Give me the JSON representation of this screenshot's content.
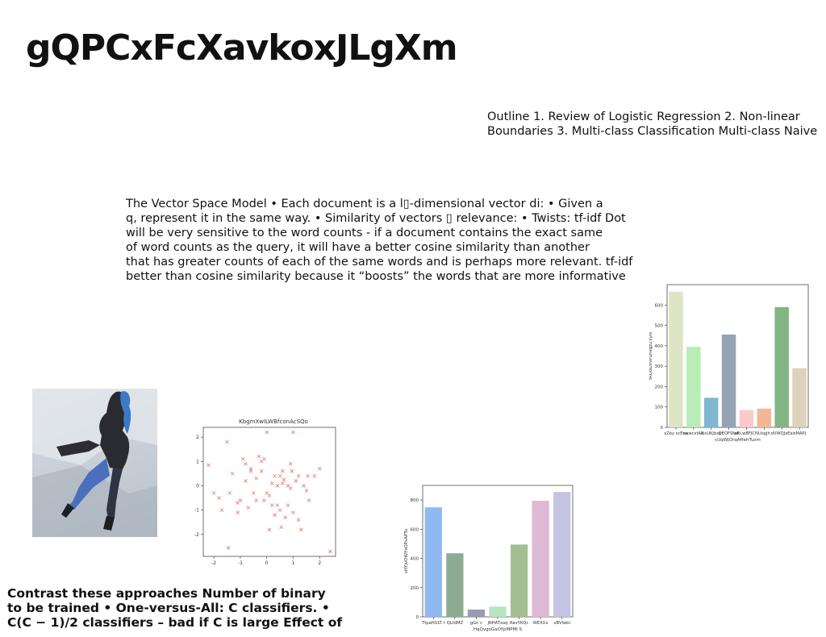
{
  "slide": {
    "title": "gQPCxFcXavkoxJLgXm",
    "outline": "Outline 1. Review of Logistic Regression 2. Non-linear Boundaries 3. Multi-class Classification Multi-class Naive",
    "vsm_lines": [
      "The Vector Space Model • Each document is a l▯-dimensional vector di: • Given a",
      "q, represent it in the same way. • Similarity of vectors ▯ relevance: • Twists:  tf-idf Dot",
      "will be very sensitive to the word counts - if a document contains the exact same",
      "of word counts as the query, it will have a better cosine similarity than another",
      "that has greater counts of each of the same words and is perhaps more relevant. tf-idf",
      "better than cosine similarity because it “boosts” the words that are more informative"
    ],
    "contrast_lines": [
      "Contrast these approaches Number of binary",
      "to be trained • One-versus-All: C classifiers. •",
      "C(C − 1)/2 classifiers – bad if C is large Effect of"
    ]
  },
  "chart_data": [
    {
      "type": "scatter",
      "title": "KbgmXwILWBfconAcSQo",
      "color": "#e07a6a",
      "marker": "x",
      "xlim": [
        -2.4,
        2.6
      ],
      "ylim": [
        -2.9,
        2.4
      ],
      "xticks": [
        "-2",
        "-1",
        "0",
        "1",
        "2"
      ],
      "yticks": [
        "-2",
        "-1",
        "0",
        "1",
        "2"
      ],
      "x": [
        -2.2,
        -1.5,
        -1.1,
        -1.4,
        -0.8,
        -0.6,
        -0.4,
        -0.2,
        0.0,
        0.2,
        0.4,
        0.6,
        0.8,
        1.0,
        1.3,
        1.6,
        -2.0,
        -1.7,
        -1.0,
        -0.7,
        -0.3,
        0.1,
        0.5,
        0.9,
        1.2,
        1.8,
        2.0,
        -1.3,
        -0.9,
        -0.5,
        -0.1,
        0.3,
        0.7,
        1.1,
        1.5,
        -1.8,
        -0.6,
        0.0,
        0.4,
        0.8,
        1.4,
        -0.2,
        0.2,
        0.6,
        1.0,
        -1.1,
        0.5,
        -0.4,
        0.9,
        -1.45,
        0.65,
        1.2,
        2.4,
        -0.1,
        0.95,
        0.3,
        -0.8,
        0.1,
        0.55,
        1.55
      ],
      "y": [
        0.85,
        1.8,
        -1.1,
        -0.3,
        0.2,
        0.6,
        -0.6,
        1.0,
        2.2,
        0.1,
        -0.8,
        0.6,
        0.0,
        2.2,
        -1.8,
        -0.6,
        -0.3,
        -1.0,
        -0.6,
        -0.9,
        1.2,
        -1.8,
        -1.0,
        0.9,
        0.4,
        0.4,
        0.7,
        0.5,
        1.1,
        -0.3,
        -0.6,
        0.4,
        -1.3,
        0.2,
        -0.2,
        -0.5,
        0.7,
        -0.3,
        0.0,
        -0.8,
        0.0,
        0.6,
        -0.8,
        0.1,
        -1.1,
        -0.7,
        0.4,
        0.3,
        -0.1,
        -2.55,
        0.25,
        -1.4,
        -2.7,
        1.1,
        0.6,
        -1.2,
        0.9,
        -0.4,
        -1.7,
        0.4
      ]
    },
    {
      "type": "bar",
      "xlabel": "cUqWJOrqAHehTuzm",
      "ylabel": "fRQdDxvPuhegzZVyN",
      "categories": [
        "xZey scEva",
        "nawcxtAR",
        "icxUKjbxp",
        "DEOFWpF",
        "ekLwBFJCN",
        "Uogjh",
        "dVWQJxEa",
        "bMAPJ"
      ],
      "values": [
        665,
        395,
        145,
        455,
        85,
        92,
        590,
        290
      ],
      "colors": [
        "#dde5c4",
        "#b8edb7",
        "#7fb7d3",
        "#95a3b3",
        "#f9c9cc",
        "#f2b896",
        "#82b584",
        "#ded2bc"
      ],
      "ylim": [
        0,
        700
      ],
      "yticks": [
        0,
        100,
        200,
        300,
        400,
        500,
        600
      ]
    },
    {
      "type": "bar",
      "xlabel": "HqQvgoGaOYpMPMi S",
      "ylabel": "vHYjvOWYsQPxAPTu",
      "categories": [
        "TtpaHULT t",
        "QLtdMZ",
        "gGn c",
        "jNHATxaq",
        "RavYKQc",
        "WEXUx",
        "vBVlwbl"
      ],
      "values": [
        750,
        435,
        50,
        70,
        495,
        795,
        855
      ],
      "colors": [
        "#8fb9f0",
        "#8dab90",
        "#9a9ab3",
        "#b7e5c0",
        "#a2bf92",
        "#dfb8d6",
        "#c4c4e2"
      ],
      "ylim": [
        0,
        900
      ],
      "yticks": [
        0,
        200,
        400,
        600,
        800
      ]
    }
  ]
}
